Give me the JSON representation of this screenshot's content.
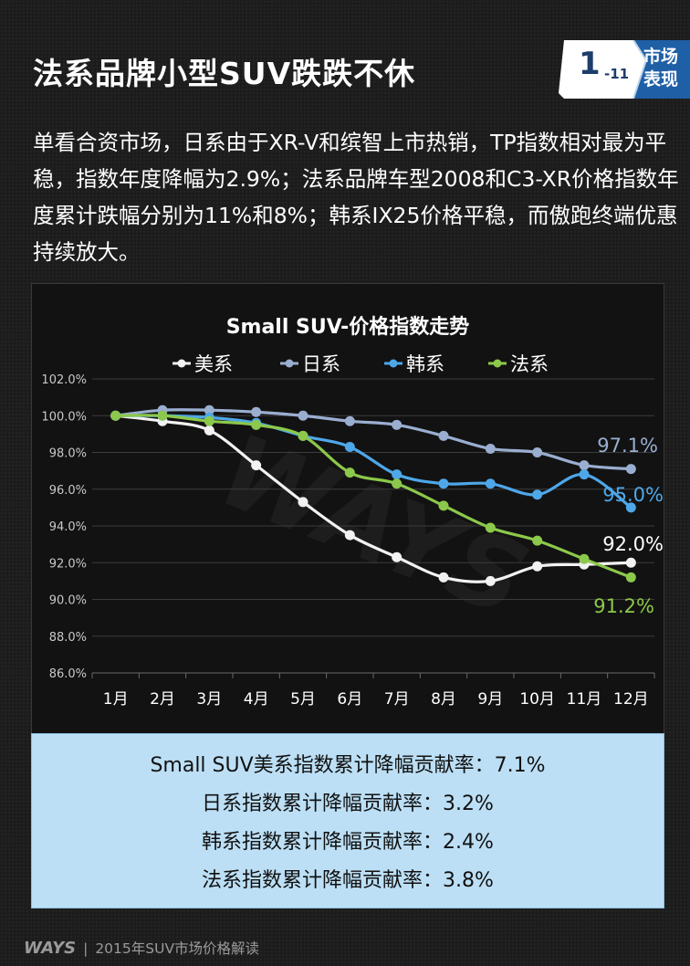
{
  "page": {
    "title": "法系品牌小型SUV跌跌不休",
    "badge": {
      "number": "1",
      "sub": "-11",
      "label": "市场表现"
    },
    "intro": "单看合资市场，日系由于XR-V和缤智上市热销，TP指数相对最为平稳，指数年度降幅为2.9%；法系品牌车型2008和C3-XR价格指数年度累计跌幅分别为11%和8%；韩系IX25价格平稳，而傲跑终端优惠持续放大。",
    "summary": [
      "Small SUV美系指数累计降幅贡献率：7.1%",
      "日系指数累计降幅贡献率：3.2%",
      "韩系指数累计降幅贡献率：2.4%",
      "法系指数累计降幅贡献率：3.8%"
    ],
    "footer": {
      "logo": "WAYS",
      "separator": "|",
      "text": "2015年SUV市场价格解读"
    },
    "watermark": "WAYS"
  },
  "chart_data": {
    "type": "line",
    "title": "Small SUV-价格指数走势",
    "categories": [
      "1月",
      "2月",
      "3月",
      "4月",
      "5月",
      "6月",
      "7月",
      "8月",
      "9月",
      "10月",
      "11月",
      "12月"
    ],
    "ylim": [
      86,
      102
    ],
    "yticks": [
      86,
      88,
      90,
      92,
      94,
      96,
      98,
      100,
      102
    ],
    "ytick_labels": [
      "86.0%",
      "88.0%",
      "90.0%",
      "92.0%",
      "94.0%",
      "96.0%",
      "98.0%",
      "100.0%",
      "102.0%"
    ],
    "legend_position": "top",
    "series": [
      {
        "name": "美系",
        "color": "#f2f2f2",
        "values": [
          100.0,
          99.7,
          99.2,
          97.3,
          95.3,
          93.5,
          92.3,
          91.2,
          91.0,
          91.8,
          91.9,
          92.0
        ],
        "end_label": "92.0%",
        "end_label_color": "#ffffff"
      },
      {
        "name": "日系",
        "color": "#9aaed0",
        "values": [
          100.0,
          100.3,
          100.3,
          100.2,
          100.0,
          99.7,
          99.5,
          98.9,
          98.2,
          98.0,
          97.3,
          97.1
        ],
        "end_label": "97.1%",
        "end_label_color": "#9aaed0"
      },
      {
        "name": "韩系",
        "color": "#4ea7e8",
        "values": [
          100.0,
          100.0,
          99.9,
          99.6,
          98.9,
          98.3,
          96.8,
          96.3,
          96.3,
          95.7,
          96.8,
          95.0
        ],
        "end_label": "95.0%",
        "end_label_color": "#4ea7e8"
      },
      {
        "name": "法系",
        "color": "#8cc84b",
        "values": [
          100.0,
          100.0,
          99.7,
          99.5,
          98.9,
          96.9,
          96.3,
          95.1,
          93.9,
          93.2,
          92.2,
          91.2
        ],
        "end_label": "91.2%",
        "end_label_color": "#8cc84b"
      }
    ]
  }
}
